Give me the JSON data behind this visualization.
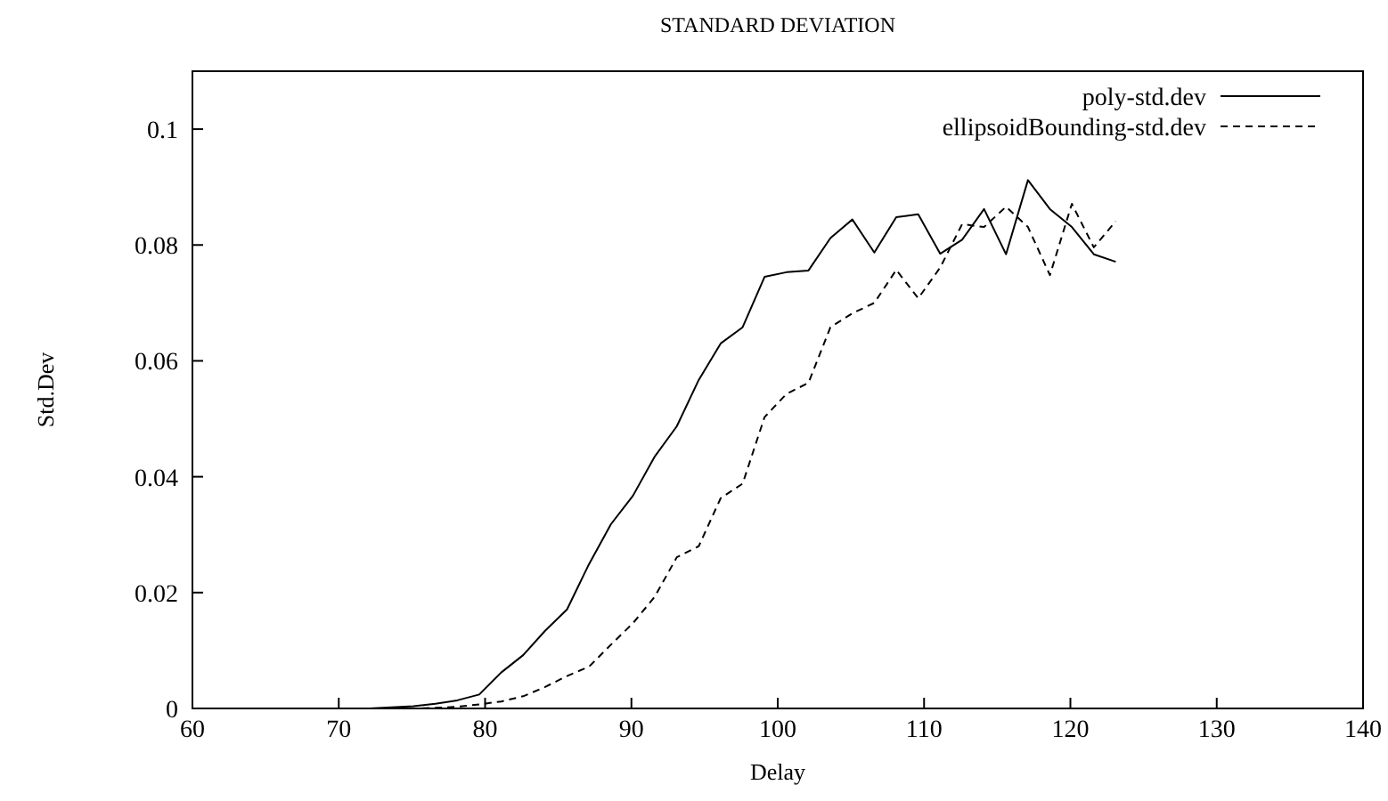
{
  "chart_data": {
    "type": "line",
    "title": "STANDARD DEVIATION",
    "xlabel": "Delay",
    "ylabel": "Std.Dev",
    "xlim": [
      60,
      140
    ],
    "xticks": [
      60,
      70,
      80,
      90,
      100,
      110,
      120,
      130,
      140
    ],
    "ylim": [
      0,
      0.11
    ],
    "yticks": [
      0,
      0.02,
      0.04,
      0.06,
      0.08,
      0.1
    ],
    "legend": "top right",
    "grid": false,
    "x": [
      70.6,
      72.1,
      73.6,
      75.1,
      76.6,
      78.1,
      79.6,
      81.1,
      82.6,
      84.1,
      85.6,
      87.1,
      88.6,
      90.1,
      91.6,
      93.1,
      94.6,
      96.1,
      97.6,
      99.1,
      100.6,
      102.1,
      103.6,
      105.1,
      106.6,
      108.1,
      109.6,
      111.1,
      112.6,
      114.1,
      115.6,
      117.1,
      118.6,
      120.1,
      121.6,
      123.1
    ],
    "series": [
      {
        "name": "poly-std.dev",
        "color": "#000000",
        "line_style": "solid",
        "values": [
          0,
          0,
          0.0002,
          0.0004,
          0.0008,
          0.0014,
          0.0024,
          0.0062,
          0.0092,
          0.0134,
          0.0171,
          0.0249,
          0.0318,
          0.0367,
          0.0435,
          0.0487,
          0.0567,
          0.063,
          0.0658,
          0.0745,
          0.0753,
          0.0756,
          0.0812,
          0.0844,
          0.0787,
          0.0848,
          0.0853,
          0.0785,
          0.0809,
          0.0862,
          0.0784,
          0.0912,
          0.0862,
          0.0831,
          0.0784,
          0.0771
        ]
      },
      {
        "name": "ellipsoidBounding-std.dev",
        "color": "#000000",
        "line_style": "dashed",
        "values": [
          0,
          0,
          0,
          0,
          0.0001,
          0.0003,
          0.0007,
          0.0012,
          0.0021,
          0.0037,
          0.0056,
          0.0072,
          0.011,
          0.0147,
          0.0193,
          0.0261,
          0.028,
          0.0363,
          0.0388,
          0.0503,
          0.0543,
          0.0562,
          0.0658,
          0.0682,
          0.07,
          0.0757,
          0.0708,
          0.0761,
          0.0836,
          0.0831,
          0.0866,
          0.0831,
          0.0748,
          0.0871,
          0.0796,
          0.0841
        ]
      }
    ]
  }
}
